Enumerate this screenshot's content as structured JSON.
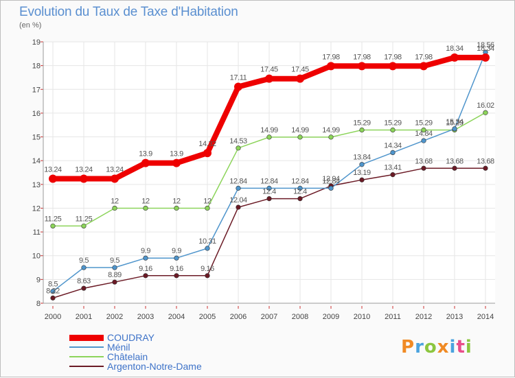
{
  "title": "Evolution du Taux de Taxe d'Habitation",
  "subtitle": "(en %)",
  "logo": {
    "text": "Proxiti",
    "colors": [
      "#f08a24",
      "#4aa3df",
      "#8cc63f",
      "#f08a24",
      "#4aa3df",
      "#e94e8a",
      "#8cc63f"
    ]
  },
  "chart_data": {
    "type": "line",
    "title": "Evolution du Taux de Taxe d'Habitation",
    "subtitle": "(en %)",
    "xlabel": "",
    "ylabel": "",
    "ylim": [
      8,
      19
    ],
    "yticks": [
      8,
      9,
      10,
      11,
      12,
      13,
      14,
      15,
      16,
      17,
      18,
      19
    ],
    "grid": true,
    "legend_position": "bottom-left",
    "categories": [
      "2000",
      "2001",
      "2002",
      "2003",
      "2004",
      "2005",
      "2006",
      "2007",
      "2008",
      "2009",
      "2010",
      "2011",
      "2012",
      "2013",
      "2014"
    ],
    "series": [
      {
        "name": "COUDRAY",
        "color": "#ee0000",
        "values": [
          13.24,
          13.24,
          13.24,
          13.9,
          13.9,
          14.32,
          17.11,
          17.45,
          17.45,
          17.98,
          17.98,
          17.98,
          17.98,
          18.34,
          18.34
        ],
        "labels": [
          "13.24",
          "13.24",
          "13.24",
          "13.9",
          "13.9",
          "14.32",
          "17.11",
          "17.45",
          "17.45",
          "17.98",
          "17.98",
          "17.98",
          "17.98",
          "18.34",
          "18.34"
        ]
      },
      {
        "name": "Ménil",
        "color": "#4f95cc",
        "values": [
          8.5,
          9.5,
          9.5,
          9.9,
          9.9,
          10.31,
          12.84,
          12.84,
          12.84,
          12.84,
          13.84,
          14.34,
          14.84,
          15.34,
          18.56
        ],
        "labels": [
          "8.5",
          "9.5",
          "9.5",
          "9.9",
          "9.9",
          "10.31",
          "12.84",
          "12.84",
          "12.84",
          "12.84",
          "13.84",
          "14.34",
          "14.84",
          "15.34",
          "18.56"
        ]
      },
      {
        "name": "Châtelain",
        "color": "#8cd45a",
        "values": [
          11.25,
          11.25,
          12,
          12,
          12,
          12,
          14.53,
          14.99,
          14.99,
          14.99,
          15.29,
          15.29,
          15.29,
          15.29,
          16.02
        ],
        "labels": [
          "11.25",
          "11.25",
          "12",
          "12",
          "12",
          "12",
          "14.53",
          "14.99",
          "14.99",
          "14.99",
          "15.29",
          "15.29",
          "15.29",
          "15.29",
          "16.02"
        ]
      },
      {
        "name": "Argenton-Notre-Dame",
        "color": "#6b1a25",
        "values": [
          8.22,
          8.63,
          8.89,
          9.16,
          9.16,
          9.16,
          12.04,
          12.4,
          12.4,
          12.94,
          13.19,
          13.41,
          13.68,
          13.68,
          13.68
        ],
        "labels": [
          "8.22",
          "8.63",
          "8.89",
          "9.16",
          "9.16",
          "9.16",
          "12.04",
          "12.4",
          "12.4",
          "12.94",
          "13.19",
          "13.41",
          "13.68",
          "13.68",
          "13.68"
        ]
      }
    ]
  }
}
